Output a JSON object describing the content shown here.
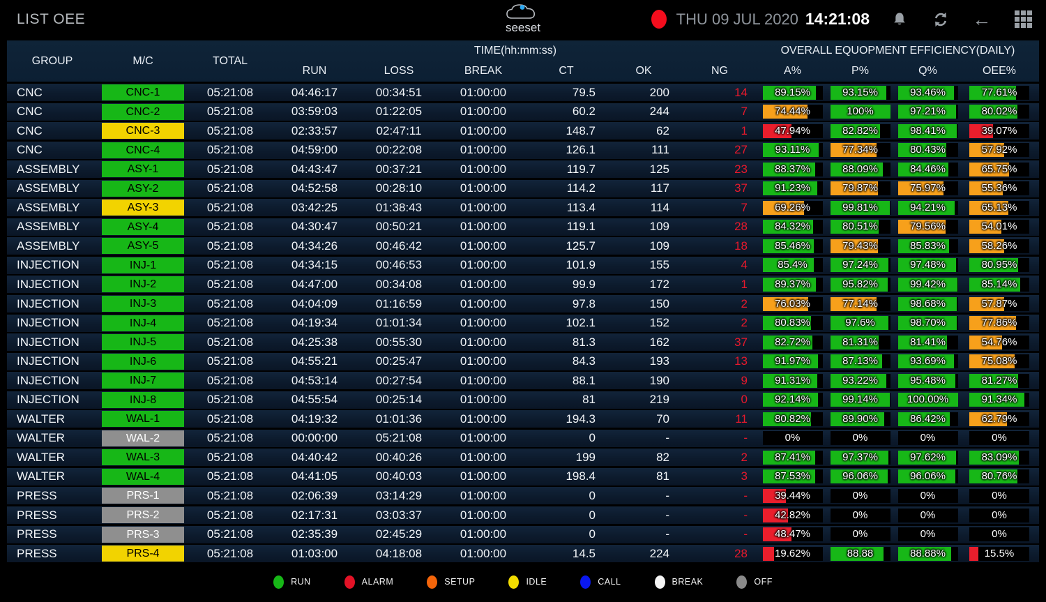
{
  "titlebar": {
    "title": "LIST OEE",
    "logo": "seeset",
    "date": "THU 09 JUL 2020",
    "time": "14:21:08",
    "icons": [
      "record-indicator",
      "bell",
      "refresh",
      "back-arrow",
      "apps-grid"
    ]
  },
  "table": {
    "headers": {
      "group": "GROUP",
      "mc": "M/C",
      "total": "TOTAL",
      "time_group": "TIME(hh:mm:ss)",
      "oee_group": "OVERALL EQUOPMENT EFFICIENCY(DAILY)",
      "run": "RUN",
      "loss": "LOSS",
      "brk": "BREAK",
      "ct": "CT",
      "ok": "OK",
      "ng": "NG",
      "a": "A%",
      "p": "P%",
      "q": "Q%",
      "oee": "OEE%"
    },
    "rows": [
      {
        "group": "CNC",
        "mc": "CNC-1",
        "status": "run",
        "total": "05:21:08",
        "run": "04:46:17",
        "loss": "00:34:51",
        "brk": "01:00:00",
        "ct": "79.5",
        "ok": "200",
        "ng": "14",
        "a": {
          "text": "89.15%",
          "pct": 89.15,
          "color": "green"
        },
        "p": {
          "text": "93.15%",
          "pct": 93.15,
          "color": "green"
        },
        "q": {
          "text": "93.46%",
          "pct": 93.46,
          "color": "green"
        },
        "oee": {
          "text": "77.61%",
          "pct": 77.61,
          "color": "green"
        }
      },
      {
        "group": "CNC",
        "mc": "CNC-2",
        "status": "run",
        "total": "05:21:08",
        "run": "03:59:03",
        "loss": "01:22:05",
        "brk": "01:00:00",
        "ct": "60.2",
        "ok": "244",
        "ng": "7",
        "a": {
          "text": "74.44%",
          "pct": 74.44,
          "color": "orange"
        },
        "p": {
          "text": "100%",
          "pct": 100,
          "color": "green"
        },
        "q": {
          "text": "97.21%",
          "pct": 97.21,
          "color": "green"
        },
        "oee": {
          "text": "80.02%",
          "pct": 80.02,
          "color": "green"
        }
      },
      {
        "group": "CNC",
        "mc": "CNC-3",
        "status": "idle",
        "total": "05:21:08",
        "run": "02:33:57",
        "loss": "02:47:11",
        "brk": "01:00:00",
        "ct": "148.7",
        "ok": "62",
        "ng": "1",
        "a": {
          "text": "47.94%",
          "pct": 47.94,
          "color": "red"
        },
        "p": {
          "text": "82.82%",
          "pct": 82.82,
          "color": "green"
        },
        "q": {
          "text": "98.41%",
          "pct": 98.41,
          "color": "green"
        },
        "oee": {
          "text": "39.07%",
          "pct": 39.07,
          "color": "red"
        }
      },
      {
        "group": "CNC",
        "mc": "CNC-4",
        "status": "run",
        "total": "05:21:08",
        "run": "04:59:00",
        "loss": "00:22:08",
        "brk": "01:00:00",
        "ct": "126.1",
        "ok": "111",
        "ng": "27",
        "a": {
          "text": "93.11%",
          "pct": 93.11,
          "color": "green"
        },
        "p": {
          "text": "77.34%",
          "pct": 77.34,
          "color": "orange"
        },
        "q": {
          "text": "80.43%",
          "pct": 80.43,
          "color": "green"
        },
        "oee": {
          "text": "57.92%",
          "pct": 57.92,
          "color": "orange"
        }
      },
      {
        "group": "ASSEMBLY",
        "mc": "ASY-1",
        "status": "run",
        "total": "05:21:08",
        "run": "04:43:47",
        "loss": "00:37:21",
        "brk": "01:00:00",
        "ct": "119.7",
        "ok": "125",
        "ng": "23",
        "a": {
          "text": "88.37%",
          "pct": 88.37,
          "color": "green"
        },
        "p": {
          "text": "88.09%",
          "pct": 88.09,
          "color": "green"
        },
        "q": {
          "text": "84.46%",
          "pct": 84.46,
          "color": "green"
        },
        "oee": {
          "text": "65.75%",
          "pct": 65.75,
          "color": "orange"
        }
      },
      {
        "group": "ASSEMBLY",
        "mc": "ASY-2",
        "status": "run",
        "total": "05:21:08",
        "run": "04:52:58",
        "loss": "00:28:10",
        "brk": "01:00:00",
        "ct": "114.2",
        "ok": "117",
        "ng": "37",
        "a": {
          "text": "91.23%",
          "pct": 91.23,
          "color": "green"
        },
        "p": {
          "text": "79.87%",
          "pct": 79.87,
          "color": "orange"
        },
        "q": {
          "text": "75.97%",
          "pct": 75.97,
          "color": "orange"
        },
        "oee": {
          "text": "55.36%",
          "pct": 55.36,
          "color": "orange"
        }
      },
      {
        "group": "ASSEMBLY",
        "mc": "ASY-3",
        "status": "idle",
        "total": "05:21:08",
        "run": "03:42:25",
        "loss": "01:38:43",
        "brk": "01:00:00",
        "ct": "113.4",
        "ok": "114",
        "ng": "7",
        "a": {
          "text": "69.26%",
          "pct": 69.26,
          "color": "orange"
        },
        "p": {
          "text": "99.81%",
          "pct": 99.81,
          "color": "green"
        },
        "q": {
          "text": "94.21%",
          "pct": 94.21,
          "color": "green"
        },
        "oee": {
          "text": "65.13%",
          "pct": 65.13,
          "color": "orange"
        }
      },
      {
        "group": "ASSEMBLY",
        "mc": "ASY-4",
        "status": "run",
        "total": "05:21:08",
        "run": "04:30:47",
        "loss": "00:50:21",
        "brk": "01:00:00",
        "ct": "119.1",
        "ok": "109",
        "ng": "28",
        "a": {
          "text": "84.32%",
          "pct": 84.32,
          "color": "green"
        },
        "p": {
          "text": "80.51%",
          "pct": 80.51,
          "color": "green"
        },
        "q": {
          "text": "79.56%",
          "pct": 79.56,
          "color": "orange"
        },
        "oee": {
          "text": "54.01%",
          "pct": 54.01,
          "color": "orange"
        }
      },
      {
        "group": "ASSEMBLY",
        "mc": "ASY-5",
        "status": "run",
        "total": "05:21:08",
        "run": "04:34:26",
        "loss": "00:46:42",
        "brk": "01:00:00",
        "ct": "125.7",
        "ok": "109",
        "ng": "18",
        "a": {
          "text": "85.46%",
          "pct": 85.46,
          "color": "green"
        },
        "p": {
          "text": "79.43%",
          "pct": 79.43,
          "color": "orange"
        },
        "q": {
          "text": "85.83%",
          "pct": 85.83,
          "color": "green"
        },
        "oee": {
          "text": "58.26%",
          "pct": 58.26,
          "color": "orange"
        }
      },
      {
        "group": "INJECTION",
        "mc": "INJ-1",
        "status": "run",
        "total": "05:21:08",
        "run": "04:34:15",
        "loss": "00:46:53",
        "brk": "01:00:00",
        "ct": "101.9",
        "ok": "155",
        "ng": "4",
        "a": {
          "text": "85.4%",
          "pct": 85.4,
          "color": "green"
        },
        "p": {
          "text": "97.24%",
          "pct": 97.24,
          "color": "green"
        },
        "q": {
          "text": "97.48%",
          "pct": 97.48,
          "color": "green"
        },
        "oee": {
          "text": "80.95%",
          "pct": 80.95,
          "color": "green"
        }
      },
      {
        "group": "INJECTION",
        "mc": "INJ-2",
        "status": "run",
        "total": "05:21:08",
        "run": "04:47:00",
        "loss": "00:34:08",
        "brk": "01:00:00",
        "ct": "99.9",
        "ok": "172",
        "ng": "1",
        "a": {
          "text": "89.37%",
          "pct": 89.37,
          "color": "green"
        },
        "p": {
          "text": "95.82%",
          "pct": 95.82,
          "color": "green"
        },
        "q": {
          "text": "99.42%",
          "pct": 99.42,
          "color": "green"
        },
        "oee": {
          "text": "85.14%",
          "pct": 85.14,
          "color": "green"
        }
      },
      {
        "group": "INJECTION",
        "mc": "INJ-3",
        "status": "run",
        "total": "05:21:08",
        "run": "04:04:09",
        "loss": "01:16:59",
        "brk": "01:00:00",
        "ct": "97.8",
        "ok": "150",
        "ng": "2",
        "a": {
          "text": "76.03%",
          "pct": 76.03,
          "color": "orange"
        },
        "p": {
          "text": "77.14%",
          "pct": 77.14,
          "color": "orange"
        },
        "q": {
          "text": "98.68%",
          "pct": 98.68,
          "color": "green"
        },
        "oee": {
          "text": "57.87%",
          "pct": 57.87,
          "color": "orange"
        }
      },
      {
        "group": "INJECTION",
        "mc": "INJ-4",
        "status": "run",
        "total": "05:21:08",
        "run": "04:19:34",
        "loss": "01:01:34",
        "brk": "01:00:00",
        "ct": "102.1",
        "ok": "152",
        "ng": "2",
        "a": {
          "text": "80.83%",
          "pct": 80.83,
          "color": "green"
        },
        "p": {
          "text": "97.6%",
          "pct": 97.6,
          "color": "green"
        },
        "q": {
          "text": "98.70%",
          "pct": 98.7,
          "color": "green"
        },
        "oee": {
          "text": "77.86%",
          "pct": 77.86,
          "color": "orange"
        }
      },
      {
        "group": "INJECTION",
        "mc": "INJ-5",
        "status": "run",
        "total": "05:21:08",
        "run": "04:25:38",
        "loss": "00:55:30",
        "brk": "01:00:00",
        "ct": "81.3",
        "ok": "162",
        "ng": "37",
        "a": {
          "text": "82.72%",
          "pct": 82.72,
          "color": "green"
        },
        "p": {
          "text": "81.31%",
          "pct": 81.31,
          "color": "green"
        },
        "q": {
          "text": "81.41%",
          "pct": 81.41,
          "color": "green"
        },
        "oee": {
          "text": "54.76%",
          "pct": 54.76,
          "color": "orange"
        }
      },
      {
        "group": "INJECTION",
        "mc": "INJ-6",
        "status": "run",
        "total": "05:21:08",
        "run": "04:55:21",
        "loss": "00:25:47",
        "brk": "01:00:00",
        "ct": "84.3",
        "ok": "193",
        "ng": "13",
        "a": {
          "text": "91.97%",
          "pct": 91.97,
          "color": "green"
        },
        "p": {
          "text": "87.13%",
          "pct": 87.13,
          "color": "green"
        },
        "q": {
          "text": "93.69%",
          "pct": 93.69,
          "color": "green"
        },
        "oee": {
          "text": "75.08%",
          "pct": 75.08,
          "color": "orange"
        }
      },
      {
        "group": "INJECTION",
        "mc": "INJ-7",
        "status": "run",
        "total": "05:21:08",
        "run": "04:53:14",
        "loss": "00:27:54",
        "brk": "01:00:00",
        "ct": "88.1",
        "ok": "190",
        "ng": "9",
        "a": {
          "text": "91.31%",
          "pct": 91.31,
          "color": "green"
        },
        "p": {
          "text": "93.22%",
          "pct": 93.22,
          "color": "green"
        },
        "q": {
          "text": "95.48%",
          "pct": 95.48,
          "color": "green"
        },
        "oee": {
          "text": "81.27%",
          "pct": 81.27,
          "color": "green"
        }
      },
      {
        "group": "INJECTION",
        "mc": "INJ-8",
        "status": "run",
        "total": "05:21:08",
        "run": "04:55:54",
        "loss": "00:25:14",
        "brk": "01:00:00",
        "ct": "81",
        "ok": "219",
        "ng": "0",
        "a": {
          "text": "92.14%",
          "pct": 92.14,
          "color": "green"
        },
        "p": {
          "text": "99.14%",
          "pct": 99.14,
          "color": "green"
        },
        "q": {
          "text": "100.00%",
          "pct": 100,
          "color": "green"
        },
        "oee": {
          "text": "91.34%",
          "pct": 91.34,
          "color": "green"
        }
      },
      {
        "group": "WALTER",
        "mc": "WAL-1",
        "status": "run",
        "total": "05:21:08",
        "run": "04:19:32",
        "loss": "01:01:36",
        "brk": "01:00:00",
        "ct": "194.3",
        "ok": "70",
        "ng": "11",
        "a": {
          "text": "80.82%",
          "pct": 80.82,
          "color": "green"
        },
        "p": {
          "text": "89.90%",
          "pct": 89.9,
          "color": "green"
        },
        "q": {
          "text": "86.42%",
          "pct": 86.42,
          "color": "green"
        },
        "oee": {
          "text": "62.79%",
          "pct": 62.79,
          "color": "orange"
        }
      },
      {
        "group": "WALTER",
        "mc": "WAL-2",
        "status": "off",
        "total": "05:21:08",
        "run": "00:00:00",
        "loss": "05:21:08",
        "brk": "01:00:00",
        "ct": "0",
        "ok": "-",
        "ng": "-",
        "a": {
          "text": "0%",
          "pct": 0,
          "color": "none"
        },
        "p": {
          "text": "0%",
          "pct": 0,
          "color": "none"
        },
        "q": {
          "text": "0%",
          "pct": 0,
          "color": "none"
        },
        "oee": {
          "text": "0%",
          "pct": 0,
          "color": "none"
        }
      },
      {
        "group": "WALTER",
        "mc": "WAL-3",
        "status": "run",
        "total": "05:21:08",
        "run": "04:40:42",
        "loss": "00:40:26",
        "brk": "01:00:00",
        "ct": "199",
        "ok": "82",
        "ng": "2",
        "a": {
          "text": "87.41%",
          "pct": 87.41,
          "color": "green"
        },
        "p": {
          "text": "97.37%",
          "pct": 97.37,
          "color": "green"
        },
        "q": {
          "text": "97.62%",
          "pct": 97.62,
          "color": "green"
        },
        "oee": {
          "text": "83.09%",
          "pct": 83.09,
          "color": "green"
        }
      },
      {
        "group": "WALTER",
        "mc": "WAL-4",
        "status": "run",
        "total": "05:21:08",
        "run": "04:41:05",
        "loss": "00:40:03",
        "brk": "01:00:00",
        "ct": "198.4",
        "ok": "81",
        "ng": "3",
        "a": {
          "text": "87.53%",
          "pct": 87.53,
          "color": "green"
        },
        "p": {
          "text": "96.06%",
          "pct": 96.06,
          "color": "green"
        },
        "q": {
          "text": "96.06%",
          "pct": 96.06,
          "color": "green"
        },
        "oee": {
          "text": "80.76%",
          "pct": 80.76,
          "color": "green"
        }
      },
      {
        "group": "PRESS",
        "mc": "PRS-1",
        "status": "off",
        "total": "05:21:08",
        "run": "02:06:39",
        "loss": "03:14:29",
        "brk": "01:00:00",
        "ct": "0",
        "ok": "-",
        "ng": "-",
        "a": {
          "text": "39.44%",
          "pct": 39.44,
          "color": "red"
        },
        "p": {
          "text": "0%",
          "pct": 0,
          "color": "none"
        },
        "q": {
          "text": "0%",
          "pct": 0,
          "color": "none"
        },
        "oee": {
          "text": "0%",
          "pct": 0,
          "color": "none"
        }
      },
      {
        "group": "PRESS",
        "mc": "PRS-2",
        "status": "off",
        "total": "05:21:08",
        "run": "02:17:31",
        "loss": "03:03:37",
        "brk": "01:00:00",
        "ct": "0",
        "ok": "-",
        "ng": "-",
        "a": {
          "text": "42.82%",
          "pct": 42.82,
          "color": "red"
        },
        "p": {
          "text": "0%",
          "pct": 0,
          "color": "none"
        },
        "q": {
          "text": "0%",
          "pct": 0,
          "color": "none"
        },
        "oee": {
          "text": "0%",
          "pct": 0,
          "color": "none"
        }
      },
      {
        "group": "PRESS",
        "mc": "PRS-3",
        "status": "off",
        "total": "05:21:08",
        "run": "02:35:39",
        "loss": "02:45:29",
        "brk": "01:00:00",
        "ct": "0",
        "ok": "-",
        "ng": "-",
        "a": {
          "text": "48.47%",
          "pct": 48.47,
          "color": "red"
        },
        "p": {
          "text": "0%",
          "pct": 0,
          "color": "none"
        },
        "q": {
          "text": "0%",
          "pct": 0,
          "color": "none"
        },
        "oee": {
          "text": "0%",
          "pct": 0,
          "color": "none"
        }
      },
      {
        "group": "PRESS",
        "mc": "PRS-4",
        "status": "idle",
        "total": "05:21:08",
        "run": "01:03:00",
        "loss": "04:18:08",
        "brk": "01:00:00",
        "ct": "14.5",
        "ok": "224",
        "ng": "28",
        "a": {
          "text": "19.62%",
          "pct": 19.62,
          "color": "red"
        },
        "p": {
          "text": "88.88",
          "pct": 88.88,
          "color": "green"
        },
        "q": {
          "text": "88.88%",
          "pct": 88.88,
          "color": "green"
        },
        "oee": {
          "text": "15.5%",
          "pct": 15.5,
          "color": "red"
        }
      }
    ]
  },
  "legend": [
    {
      "label": "RUN",
      "color": "#17b717"
    },
    {
      "label": "ALARM",
      "color": "#e31226"
    },
    {
      "label": "SETUP",
      "color": "#f4650a"
    },
    {
      "label": "IDLE",
      "color": "#f2dc00"
    },
    {
      "label": "CALL",
      "color": "#0a18ef"
    },
    {
      "label": "BREAK",
      "color": "#f5f5f5"
    },
    {
      "label": "OFF",
      "color": "#8a8a8a"
    }
  ],
  "colors": {
    "bar_green": "#17b717",
    "bar_orange": "#f7a01b",
    "bar_red": "#ea1e2c",
    "label_run": "#17b717",
    "label_idle": "#f2d300",
    "label_off": "#8f8f8f",
    "ng_text": "#e8192c",
    "row_bg": "#0d1b2c",
    "header_bg": "#0c1f33",
    "accent_record": "#f40d1d"
  }
}
